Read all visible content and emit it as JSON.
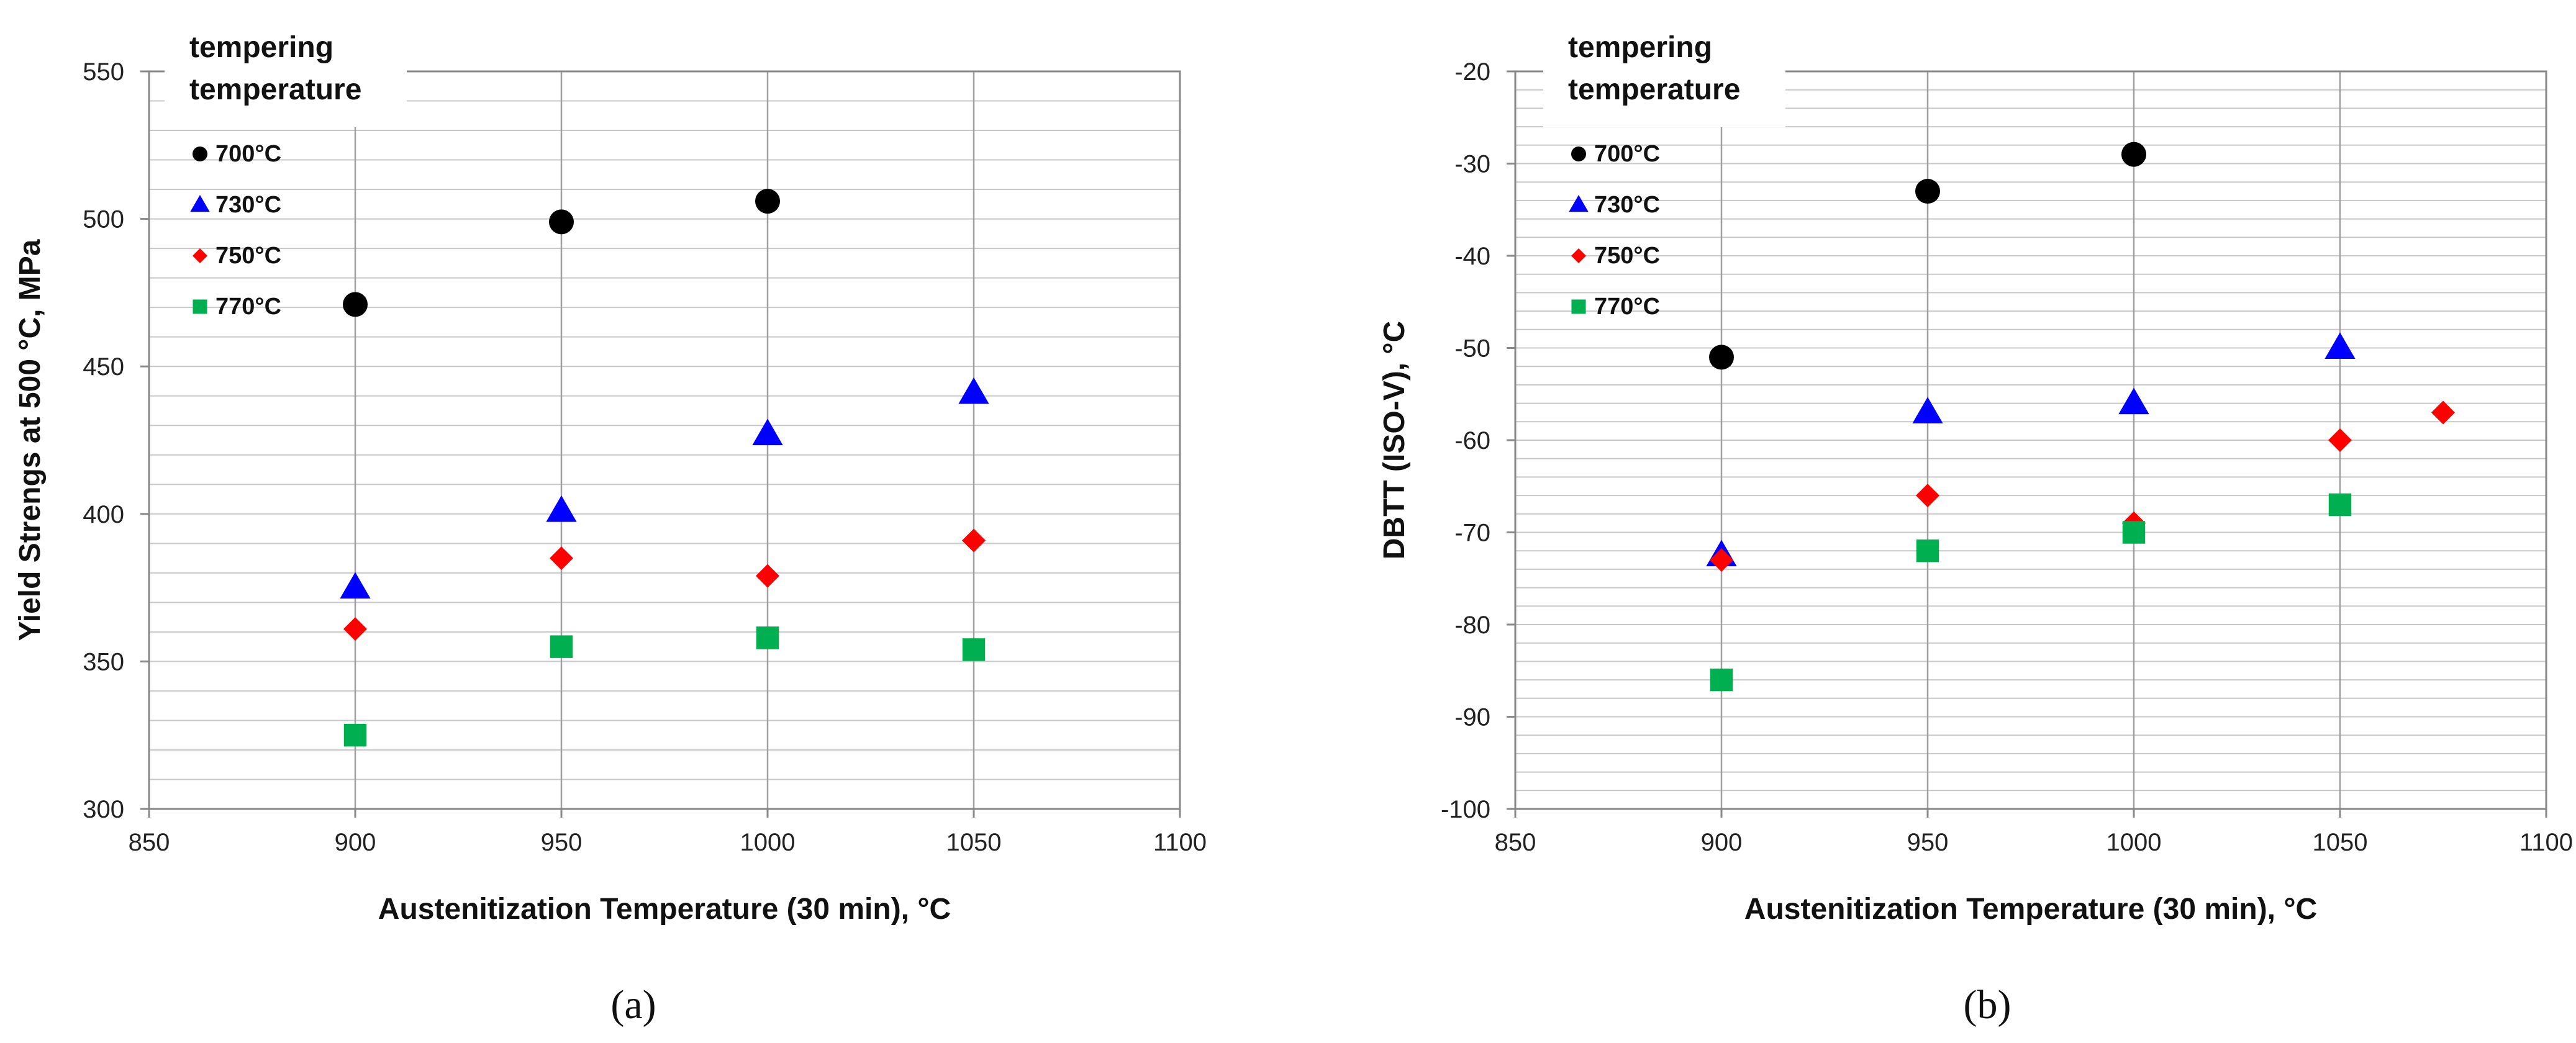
{
  "chart_data": [
    {
      "type": "scatter",
      "panel_label": "(a)",
      "panel_letter": "a",
      "xlabel": "Austenitization Temperature (30 min), °C",
      "ylabel": "Yield Strengs at 500 °C, MPa",
      "xlim": [
        850,
        1100
      ],
      "ylim": [
        300,
        550
      ],
      "x_ticks": [
        "850",
        "900",
        "950",
        "1000",
        "1050",
        "1100"
      ],
      "y_ticks": [
        "300",
        "350",
        "400",
        "450",
        "500",
        "550"
      ],
      "minor_y_step": 10,
      "legend_title": [
        "tempering",
        "temperature"
      ],
      "legend_position": "top-left",
      "series": [
        {
          "name": "700°C",
          "marker": "circle",
          "color": "#000000",
          "x": [
            900,
            950,
            1000
          ],
          "y": [
            471,
            499,
            506
          ]
        },
        {
          "name": "730°C",
          "marker": "triangle",
          "color": "#0000ff",
          "x": [
            900,
            950,
            1000,
            1050
          ],
          "y": [
            375,
            401,
            427,
            441
          ]
        },
        {
          "name": "750°C",
          "marker": "diamond",
          "color": "#ff0000",
          "x": [
            900,
            950,
            1000,
            1050
          ],
          "y": [
            361,
            385,
            379,
            391
          ]
        },
        {
          "name": "770°C",
          "marker": "square",
          "color": "#00b050",
          "x": [
            900,
            950,
            1000,
            1050
          ],
          "y": [
            325,
            355,
            358,
            354
          ]
        }
      ]
    },
    {
      "type": "scatter",
      "panel_label": "(b)",
      "panel_letter": "b",
      "xlabel": "Austenitization Temperature (30 min), °C",
      "ylabel": "DBTT (ISO-V), °C",
      "xlim": [
        850,
        1100
      ],
      "ylim": [
        -100,
        -20
      ],
      "x_ticks": [
        "850",
        "900",
        "950",
        "1000",
        "1050",
        "1100"
      ],
      "y_ticks": [
        "-100",
        "-90",
        "-80",
        "-70",
        "-60",
        "-50",
        "-40",
        "-30",
        "-20"
      ],
      "minor_y_step": 2,
      "legend_title": [
        "tempering",
        "temperature"
      ],
      "legend_position": "top-left",
      "series": [
        {
          "name": "700°C",
          "marker": "circle",
          "color": "#000000",
          "x": [
            900,
            950,
            1000
          ],
          "y": [
            -51,
            -33,
            -29
          ]
        },
        {
          "name": "730°C",
          "marker": "triangle",
          "color": "#0000ff",
          "x": [
            900,
            950,
            1000,
            1050
          ],
          "y": [
            -72.5,
            -57,
            -56,
            -50
          ]
        },
        {
          "name": "750°C",
          "marker": "diamond",
          "color": "#ff0000",
          "x": [
            900,
            950,
            1000,
            1050,
            1075
          ],
          "y": [
            -73,
            -66,
            -69,
            -60,
            -57
          ]
        },
        {
          "name": "770°C",
          "marker": "square",
          "color": "#00b050",
          "x": [
            900,
            950,
            1000,
            1050
          ],
          "y": [
            -86,
            -72,
            -70,
            -67
          ]
        }
      ]
    }
  ]
}
